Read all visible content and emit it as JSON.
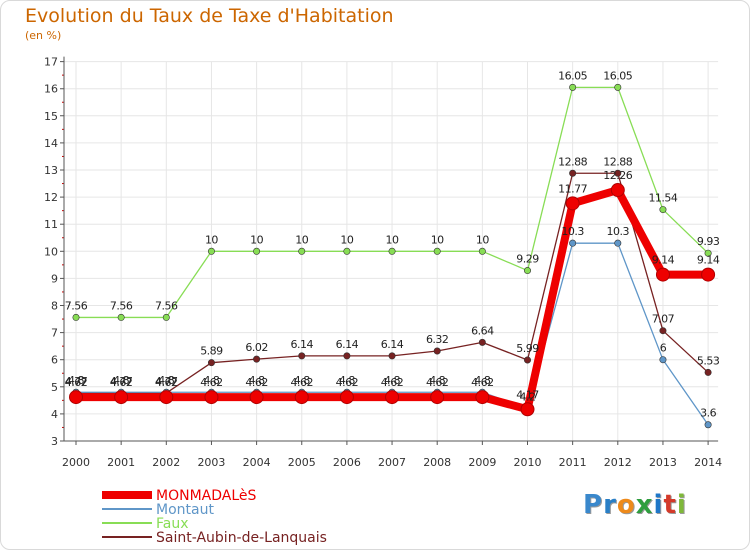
{
  "header": {
    "title": "Evolution du Taux de Taxe d'Habitation",
    "subtitle": "(en %)"
  },
  "logo": {
    "text": "Proxiti"
  },
  "colors": {
    "title": "#cc6600",
    "axis": "#555555",
    "grid": "#e6e6e6",
    "tick_minor": "#cc0000"
  },
  "chart_data": {
    "type": "line",
    "categories": [
      "2000",
      "2001",
      "2002",
      "2003",
      "2004",
      "2005",
      "2006",
      "2007",
      "2008",
      "2009",
      "2010",
      "2011",
      "2012",
      "2013",
      "2014"
    ],
    "ylim": [
      3,
      17
    ],
    "yticks": [
      3,
      4,
      5,
      6,
      7,
      8,
      9,
      10,
      11,
      12,
      13,
      14,
      15,
      16,
      17
    ],
    "grid": true,
    "legend_position": "bottom-left",
    "series": [
      {
        "name": "MONMADALèS",
        "color": "#ee0000",
        "values": [
          4.62,
          4.62,
          4.62,
          4.62,
          4.62,
          4.62,
          4.62,
          4.62,
          4.62,
          4.62,
          4.17,
          11.77,
          12.26,
          9.14,
          9.14
        ],
        "labels": [
          "4.62",
          "4.62",
          "4.62",
          "4.62",
          "4.62",
          "4.62",
          "4.62",
          "4.62",
          "4.62",
          "4.62",
          "4.17",
          "11.77",
          "12.26",
          "9.14",
          "9.14"
        ]
      },
      {
        "name": "Montaut",
        "color": "#5f96c8",
        "values": [
          4.8,
          4.8,
          4.8,
          4.8,
          4.8,
          4.8,
          4.8,
          4.8,
          4.8,
          4.8,
          4.2,
          10.3,
          10.3,
          6,
          3.6
        ],
        "labels": [
          "4.8",
          "4.8",
          "4.8",
          "4.8",
          "4.8",
          "4.8",
          "4.8",
          "4.8",
          "4.8",
          "4.8",
          "4.2",
          "10.3",
          "10.3",
          "6",
          "3.6"
        ]
      },
      {
        "name": "Faux",
        "color": "#88dd55",
        "values": [
          7.56,
          7.56,
          7.56,
          10,
          10,
          10,
          10,
          10,
          10,
          10,
          9.29,
          16.05,
          16.05,
          11.54,
          9.93
        ],
        "labels": [
          "7.56",
          "7.56",
          "7.56",
          "10",
          "10",
          "10",
          "10",
          "10",
          "10",
          "10",
          "9.29",
          "16.05",
          "16.05",
          "11.54",
          "9.93"
        ]
      },
      {
        "name": "Saint-Aubin-de-Lanquais",
        "color": "#772222",
        "values": [
          4.77,
          4.77,
          4.77,
          5.89,
          6.02,
          6.14,
          6.14,
          6.14,
          6.32,
          6.64,
          5.99,
          12.88,
          12.88,
          7.07,
          5.53
        ],
        "labels": [
          "4.77",
          "4.77",
          "4.77",
          "5.89",
          "6.02",
          "6.14",
          "6.14",
          "6.14",
          "6.32",
          "6.64",
          "5.99",
          "12.88",
          "12.88",
          "7.07",
          "5.53"
        ]
      }
    ]
  }
}
